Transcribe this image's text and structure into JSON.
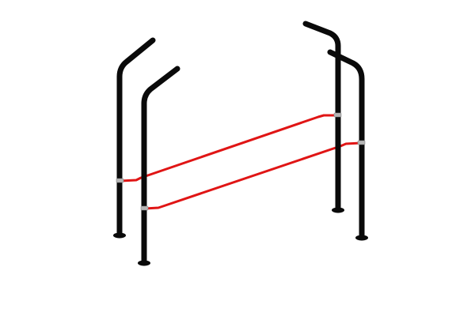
{
  "scene": {
    "subject": "barrier-frame",
    "colors": {
      "background": "#ffffff",
      "post": "#0a0a0a",
      "rail": "#e01515",
      "clamp": "#b5b5b5"
    },
    "post_count": 4,
    "rail_count": 2
  }
}
